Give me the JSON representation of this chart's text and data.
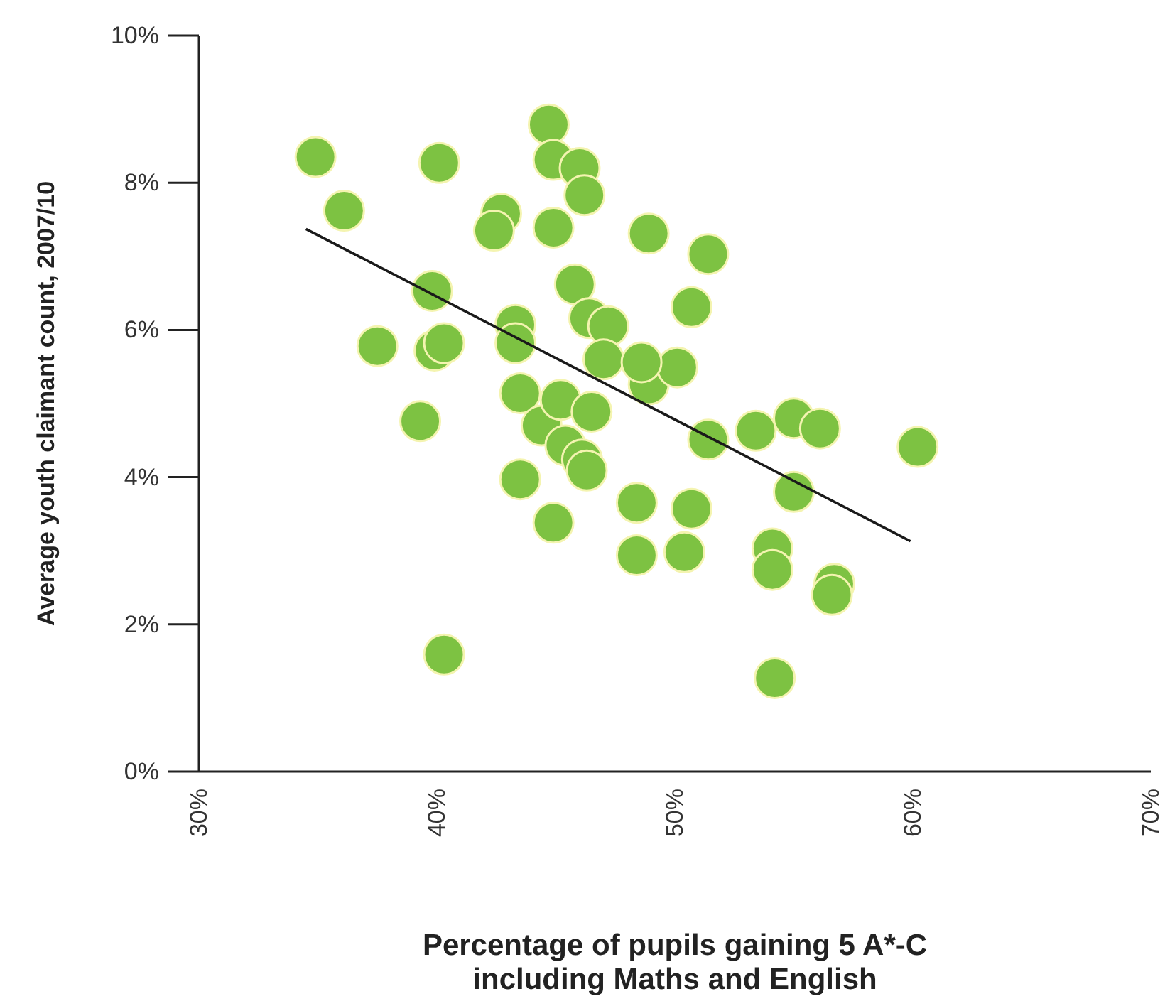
{
  "chart_data": {
    "type": "scatter",
    "xlabel": "Percentage of pupils gaining 5 A*-C\nincluding Maths and English",
    "ylabel": "Average youth claimant count, 2007/10",
    "xlim": [
      30,
      70
    ],
    "xticks": [
      {
        "value": 30,
        "label": "30%"
      },
      {
        "value": 40,
        "label": "40%"
      },
      {
        "value": 50,
        "label": "50%"
      },
      {
        "value": 60,
        "label": "60%"
      },
      {
        "value": 70,
        "label": "70%"
      }
    ],
    "ylim": [
      0,
      10
    ],
    "yticks": [
      {
        "value": 0,
        "label": "0%"
      },
      {
        "value": 2,
        "label": "2%"
      },
      {
        "value": 4,
        "label": "4%"
      },
      {
        "value": 6,
        "label": "6%"
      },
      {
        "value": 8,
        "label": "8%"
      },
      {
        "value": 10,
        "label": "10%"
      }
    ],
    "grid": false,
    "marker": "circle",
    "series": [
      {
        "type": "scatter",
        "color": "#7dc242",
        "x": [
          34.9,
          36.1,
          40.1,
          37.5,
          39.8,
          39.9,
          40.3,
          39.3,
          40.3,
          42.7,
          42.4,
          43.3,
          43.3,
          43.5,
          43.5,
          44.7,
          44.9,
          44.9,
          46.0,
          46.2,
          45.8,
          46.4,
          47.2,
          44.4,
          45.2,
          45.4,
          46.5,
          46.1,
          44.9,
          47.0,
          48.9,
          51.4,
          50.7,
          48.9,
          50.1,
          48.6,
          46.3,
          51.4,
          53.4,
          55.0,
          56.1,
          60.2,
          55.0,
          48.4,
          50.7,
          48.4,
          50.4,
          54.1,
          54.1,
          56.7,
          56.6,
          54.2
        ],
        "values": [
          8.35,
          7.62,
          8.27,
          5.78,
          6.53,
          5.72,
          5.82,
          4.76,
          1.59,
          7.58,
          7.35,
          6.07,
          5.82,
          5.14,
          3.97,
          8.79,
          8.31,
          7.39,
          8.2,
          7.83,
          6.62,
          6.16,
          6.05,
          4.7,
          5.05,
          4.43,
          4.89,
          4.24,
          3.38,
          5.6,
          7.31,
          7.03,
          6.31,
          5.26,
          5.49,
          5.56,
          4.09,
          4.51,
          4.63,
          4.8,
          4.66,
          4.41,
          3.8,
          3.65,
          3.57,
          2.94,
          2.98,
          3.03,
          2.74,
          2.55,
          2.4,
          1.27
        ]
      },
      {
        "type": "line",
        "color": "#1a1a1a",
        "x": [
          34.5,
          59.9
        ],
        "values": [
          7.37,
          3.13
        ],
        "marker": "none"
      }
    ]
  }
}
